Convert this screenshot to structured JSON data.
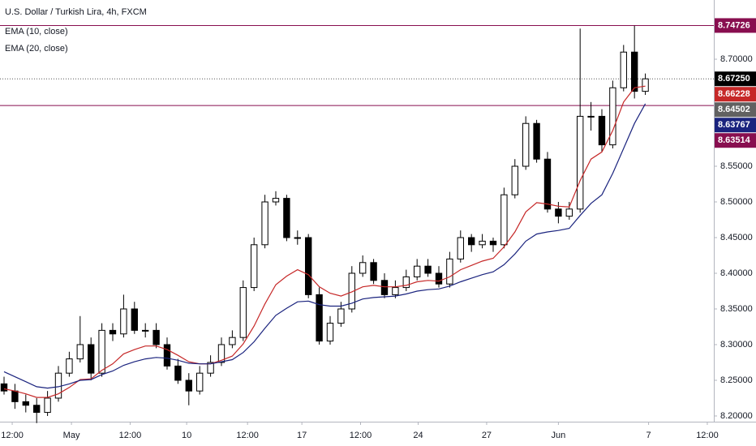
{
  "chart_data": {
    "type": "candlestick",
    "title": "U.S. Dollar / Turkish Lira, 4h, FXCM",
    "up_color": "#ffffff",
    "down_color": "#000000",
    "outline_color": "#000000",
    "open": [
      8.245,
      8.235,
      8.22,
      8.215,
      8.205,
      8.225,
      8.26,
      8.28,
      8.3,
      8.26,
      8.32,
      8.315,
      8.35,
      8.32,
      8.32,
      8.3,
      8.27,
      8.25,
      8.235,
      8.26,
      8.275,
      8.3,
      8.31,
      8.38,
      8.44,
      8.5,
      8.505,
      8.45,
      8.45,
      8.37,
      8.305,
      8.33,
      8.35,
      8.4,
      8.415,
      8.39,
      8.37,
      8.38,
      8.395,
      8.41,
      8.4,
      8.385,
      8.42,
      8.45,
      8.44,
      8.445,
      8.44,
      8.51,
      8.55,
      8.61,
      8.56,
      8.49,
      8.48,
      8.49,
      8.62,
      8.62,
      8.58,
      8.66,
      8.71,
      8.655
    ],
    "high": [
      8.255,
      8.245,
      8.23,
      8.225,
      8.235,
      8.27,
      8.29,
      8.34,
      8.31,
      8.33,
      8.33,
      8.37,
      8.36,
      8.33,
      8.33,
      8.31,
      8.28,
      8.26,
      8.27,
      8.285,
      8.31,
      8.32,
      8.39,
      8.45,
      8.51,
      8.515,
      8.51,
      8.46,
      8.455,
      8.38,
      8.34,
      8.36,
      8.41,
      8.425,
      8.42,
      8.4,
      8.39,
      8.405,
      8.42,
      8.42,
      8.41,
      8.43,
      8.46,
      8.455,
      8.455,
      8.45,
      8.52,
      8.56,
      8.62,
      8.615,
      8.57,
      8.5,
      8.5,
      8.743,
      8.64,
      8.63,
      8.67,
      8.72,
      8.747,
      8.68
    ],
    "low": [
      8.23,
      8.21,
      8.205,
      8.19,
      8.2,
      8.22,
      8.255,
      8.275,
      8.25,
      8.255,
      8.305,
      8.31,
      8.315,
      8.31,
      8.295,
      8.265,
      8.245,
      8.215,
      8.23,
      8.255,
      8.27,
      8.295,
      8.305,
      8.375,
      8.435,
      8.495,
      8.445,
      8.44,
      8.365,
      8.3,
      8.3,
      8.325,
      8.345,
      8.395,
      8.385,
      8.365,
      8.365,
      8.375,
      8.39,
      8.395,
      8.38,
      8.38,
      8.415,
      8.43,
      8.435,
      8.43,
      8.435,
      8.505,
      8.545,
      8.555,
      8.485,
      8.47,
      8.475,
      8.485,
      8.6,
      8.57,
      8.575,
      8.655,
      8.645,
      8.65
    ],
    "close": [
      8.235,
      8.22,
      8.215,
      8.205,
      8.225,
      8.26,
      8.28,
      8.3,
      8.26,
      8.32,
      8.315,
      8.35,
      8.32,
      8.32,
      8.3,
      8.27,
      8.25,
      8.235,
      8.26,
      8.275,
      8.3,
      8.31,
      8.38,
      8.44,
      8.5,
      8.505,
      8.45,
      8.45,
      8.37,
      8.305,
      8.33,
      8.35,
      8.4,
      8.415,
      8.39,
      8.37,
      8.38,
      8.395,
      8.41,
      8.4,
      8.385,
      8.42,
      8.45,
      8.44,
      8.445,
      8.44,
      8.51,
      8.55,
      8.61,
      8.56,
      8.49,
      8.48,
      8.49,
      8.62,
      8.62,
      8.58,
      8.66,
      8.71,
      8.655,
      8.6725
    ],
    "series": [
      {
        "name": "EMA (10, close)",
        "color": "#c62828",
        "values": [
          8.238,
          8.235,
          8.231,
          8.226,
          8.226,
          8.231,
          8.24,
          8.251,
          8.252,
          8.264,
          8.273,
          8.287,
          8.293,
          8.298,
          8.298,
          8.293,
          8.285,
          8.276,
          8.273,
          8.273,
          8.278,
          8.284,
          8.301,
          8.326,
          8.357,
          8.384,
          8.396,
          8.405,
          8.398,
          8.381,
          8.372,
          8.368,
          8.374,
          8.381,
          8.383,
          8.381,
          8.381,
          8.383,
          8.388,
          8.39,
          8.389,
          8.395,
          8.405,
          8.411,
          8.417,
          8.421,
          8.437,
          8.458,
          8.486,
          8.499,
          8.497,
          8.494,
          8.493,
          8.53,
          8.56,
          8.57,
          8.6,
          8.64,
          8.66,
          8.66228
        ]
      },
      {
        "name": "EMA (20, close)",
        "color": "#1a237e",
        "values": [
          8.262,
          8.255,
          8.248,
          8.241,
          8.239,
          8.241,
          8.245,
          8.25,
          8.251,
          8.258,
          8.263,
          8.271,
          8.276,
          8.28,
          8.282,
          8.281,
          8.278,
          8.274,
          8.273,
          8.273,
          8.276,
          8.279,
          8.289,
          8.304,
          8.323,
          8.341,
          8.351,
          8.36,
          8.361,
          8.356,
          8.354,
          8.354,
          8.358,
          8.364,
          8.366,
          8.367,
          8.368,
          8.371,
          8.375,
          8.377,
          8.378,
          8.382,
          8.388,
          8.393,
          8.398,
          8.402,
          8.412,
          8.427,
          8.445,
          8.455,
          8.458,
          8.46,
          8.463,
          8.481,
          8.498,
          8.51,
          8.54,
          8.575,
          8.61,
          8.63767
        ]
      }
    ],
    "hlines": [
      {
        "value": 8.74726,
        "color": "#880e4f"
      },
      {
        "value": 8.63514,
        "color": "#880e4f"
      }
    ],
    "price_markers": [
      {
        "value": 8.74726,
        "color": "#880e4f"
      },
      {
        "value": 8.6725,
        "label": "8.67250",
        "color": "#000000"
      },
      {
        "value": 8.66228,
        "color": "#c62828"
      },
      {
        "value": 8.64502,
        "color": "#616161"
      },
      {
        "value": 8.63767,
        "color": "#1a237e"
      },
      {
        "value": 8.63514,
        "color": "#880e4f"
      }
    ],
    "ylim": [
      8.192,
      8.783
    ],
    "yticks": [
      {
        "value": 8.2,
        "label": "8.20000"
      },
      {
        "value": 8.25,
        "label": "8.25000"
      },
      {
        "value": 8.3,
        "label": "8.30000"
      },
      {
        "value": 8.35,
        "label": "8.35000"
      },
      {
        "value": 8.4,
        "label": "8.40000"
      },
      {
        "value": 8.45,
        "label": "8.45000"
      },
      {
        "value": 8.5,
        "label": "8.50000"
      },
      {
        "value": 8.55,
        "label": "8.55000"
      },
      {
        "value": 8.7,
        "label": "8.70000"
      }
    ],
    "xlim": [
      -0.373,
      65.3
    ],
    "xticks": [
      {
        "value": 0.75,
        "label": "12:00"
      },
      {
        "value": 6.2,
        "label": "May"
      },
      {
        "value": 11.6,
        "label": "12:00"
      },
      {
        "value": 16.8,
        "label": "10"
      },
      {
        "value": 22.4,
        "label": "12:00"
      },
      {
        "value": 27.4,
        "label": "17"
      },
      {
        "value": 32.8,
        "label": "12:00"
      },
      {
        "value": 38.1,
        "label": "24"
      },
      {
        "value": 44.4,
        "label": "27"
      },
      {
        "value": 51,
        "label": "Jun"
      },
      {
        "value": 59.3,
        "label": "7"
      },
      {
        "value": 64.7,
        "label": "12:00"
      }
    ]
  }
}
